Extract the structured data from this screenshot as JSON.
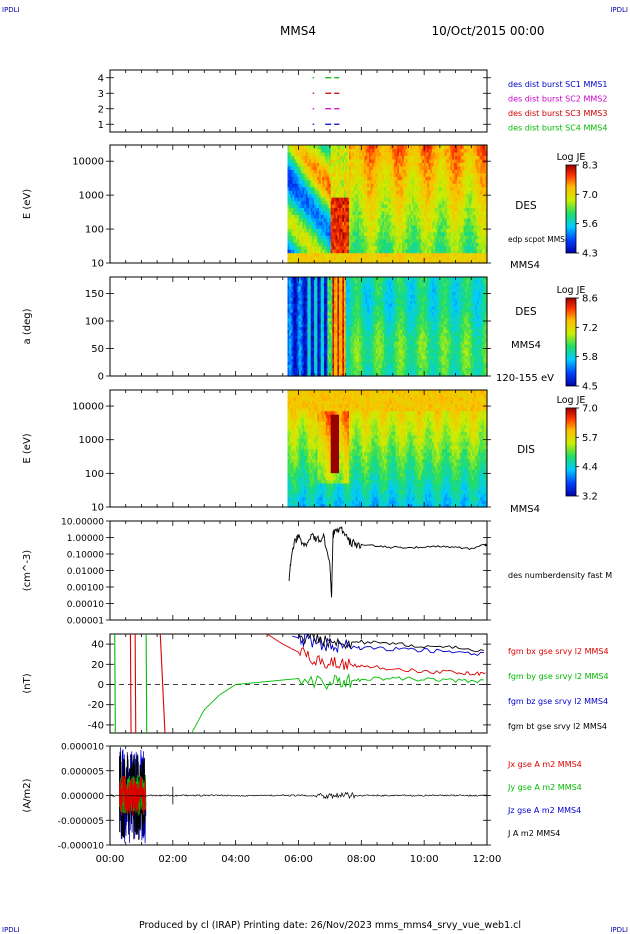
{
  "header": {
    "corner_left": "IPDLI",
    "corner_right": "IPDLI",
    "title": "MMS4",
    "date": "10/Oct/2015 00:00"
  },
  "footer": {
    "text": "Produced by cl (IRAP)   Printing date: 26/Nov/2023   mms_mms4_srvy_vue_web1.cl",
    "corner_left": "IPDLI",
    "corner_right": "IPDLI"
  },
  "time_axis": {
    "tick_labels": [
      "00:00",
      "02:00",
      "04:00",
      "06:00",
      "08:00",
      "10:00",
      "12:00"
    ],
    "range_hours": [
      0,
      12
    ]
  },
  "chart_data": [
    {
      "type": "scatter",
      "panel": "burst",
      "y_tick_labels": [
        "1",
        "2",
        "3",
        "4"
      ],
      "ylim": [
        0.5,
        4.5
      ],
      "series": [
        {
          "name": "des dist burst SC1 MMS1",
          "color": "#0000cc",
          "y": 1,
          "segments": [
            [
              6.45,
              6.5
            ],
            [
              6.85,
              7.3
            ]
          ]
        },
        {
          "name": "des dist burst SC2 MMS2",
          "color": "#cc00cc",
          "y": 2,
          "segments": [
            [
              6.45,
              6.5
            ],
            [
              6.85,
              7.3
            ]
          ]
        },
        {
          "name": "des dist burst SC3 MMS3",
          "color": "#cc0000",
          "y": 3,
          "segments": [
            [
              6.45,
              6.5
            ],
            [
              6.85,
              7.3
            ]
          ]
        },
        {
          "name": "des dist burst SC4 MMS4",
          "color": "#00bb00",
          "y": 4,
          "segments": [
            [
              6.45,
              6.5
            ],
            [
              6.85,
              7.3
            ]
          ]
        }
      ]
    },
    {
      "type": "heatmap",
      "panel": "des-energy",
      "ylabel": "E (eV)",
      "scale": "log",
      "y_tick_labels": [
        "10",
        "100",
        "1000",
        "10000"
      ],
      "ylim": [
        10,
        30000
      ],
      "data_start_hour": 5.65,
      "label_right": "DES",
      "label_right2": "edp scpot MMS4",
      "label_right3": "MMS4",
      "colorbar": {
        "title": "Log JE",
        "max": 8.3,
        "mid_high": 7.0,
        "mid_low": 5.6,
        "min": 4.3
      }
    },
    {
      "type": "heatmap",
      "panel": "des-pitch",
      "ylabel": "a (deg)",
      "scale": "linear",
      "y_tick_labels": [
        "0",
        "50",
        "100",
        "150"
      ],
      "ylim": [
        0,
        180
      ],
      "data_start_hour": 5.65,
      "label_right": "DES",
      "label_right2": "MMS4",
      "label_right3": "120-155 eV",
      "colorbar": {
        "title": "Log JE",
        "max": 8.6,
        "mid_high": 7.2,
        "mid_low": 5.8,
        "min": 4.5
      }
    },
    {
      "type": "heatmap",
      "panel": "dis-energy",
      "ylabel": "E (eV)",
      "scale": "log",
      "y_tick_labels": [
        "10",
        "100",
        "1000",
        "10000"
      ],
      "ylim": [
        10,
        30000
      ],
      "data_start_hour": 5.65,
      "label_right": "DIS",
      "label_right3": "MMS4",
      "colorbar": {
        "title": "Log JE",
        "max": 7.0,
        "mid_high": 5.7,
        "mid_low": 4.4,
        "min": 3.2
      }
    },
    {
      "type": "line",
      "panel": "density",
      "ylabel": "(cm^-3)",
      "scale": "log",
      "y_tick_labels": [
        "10.00000",
        "1.00000",
        "0.10000",
        "0.01000",
        "0.00100",
        "0.00010",
        "0.00001"
      ],
      "ylim": [
        1e-05,
        10
      ],
      "series": [
        {
          "name": "des numberdensity fast M",
          "color": "#000000",
          "x": [
            5.7,
            5.8,
            5.9,
            6.0,
            6.2,
            6.4,
            6.6,
            6.8,
            7.0,
            7.05,
            7.1,
            7.2,
            7.4,
            7.6,
            7.8,
            8.0,
            8.5,
            9.0,
            9.5,
            10.0,
            10.5,
            11.0,
            11.5,
            11.9,
            12.0
          ],
          "y": [
            0.003,
            0.2,
            0.6,
            1.0,
            0.4,
            1.2,
            0.7,
            1.0,
            0.03,
            0.0002,
            1.5,
            4.0,
            2.5,
            0.6,
            0.4,
            0.35,
            0.3,
            0.25,
            0.25,
            0.25,
            0.3,
            0.25,
            0.2,
            0.4,
            0.3
          ]
        }
      ]
    },
    {
      "type": "line",
      "panel": "magnetic-field",
      "ylabel": "(nT)",
      "y_tick_labels": [
        "-40",
        "-20",
        "0",
        "20",
        "40"
      ],
      "ylim": [
        -48,
        50
      ],
      "series": [
        {
          "name": "fgm bx gse srvy l2 MMS4",
          "color": "#dd0000",
          "x": [
            5.0,
            5.5,
            6.0,
            6.5,
            7.0,
            7.5,
            8.0,
            9.0,
            10.0,
            11.0,
            11.5,
            12.0
          ],
          "y": [
            50,
            40,
            32,
            25,
            22,
            20,
            18,
            16,
            13,
            12,
            11,
            10
          ]
        },
        {
          "name": "fgm by gse srvy l2 MMS4",
          "color": "#00bb00",
          "x": [
            2.6,
            3.0,
            3.5,
            4.0,
            5.0,
            6.0,
            7.0,
            7.5,
            8.0,
            9.0,
            10.0,
            11.0,
            12.0
          ],
          "y": [
            -48,
            -25,
            -10,
            0,
            3,
            6,
            2,
            3,
            5,
            6,
            5,
            4,
            3
          ]
        },
        {
          "name": "fgm bz gse srvy l2 MMS4",
          "color": "#0000cc",
          "x": [
            5.8,
            6.2,
            6.8,
            7.2,
            7.6,
            8.0,
            9.0,
            10.0,
            11.0,
            12.0
          ],
          "y": [
            48,
            44,
            40,
            38,
            38,
            36,
            35,
            34,
            32,
            30
          ]
        },
        {
          "name": "fgm bt gse srvy l2 MMS4",
          "color": "#000000",
          "x": [
            6.0,
            6.5,
            7.0,
            7.5,
            8.0,
            9.0,
            10.0,
            11.0,
            12.0
          ],
          "y": [
            48,
            45,
            44,
            42,
            42,
            40,
            38,
            36,
            34
          ]
        }
      ]
    },
    {
      "type": "line",
      "panel": "current-density",
      "ylabel": "(A/m2)",
      "y_tick_labels": [
        "0.000010",
        "0.000005",
        "0.000000",
        "-0.000005",
        "-0.000010"
      ],
      "ylim": [
        -1e-05,
        1e-05
      ],
      "series": [
        {
          "name": "Jx gse A m2 MMS4",
          "color": "#dd0000"
        },
        {
          "name": "Jy gse A m2 MMS4",
          "color": "#00bb00"
        },
        {
          "name": "Jz gse A m2 MMS4",
          "color": "#0000cc"
        },
        {
          "name": "J A m2 MMS4",
          "color": "#000000"
        }
      ]
    }
  ]
}
